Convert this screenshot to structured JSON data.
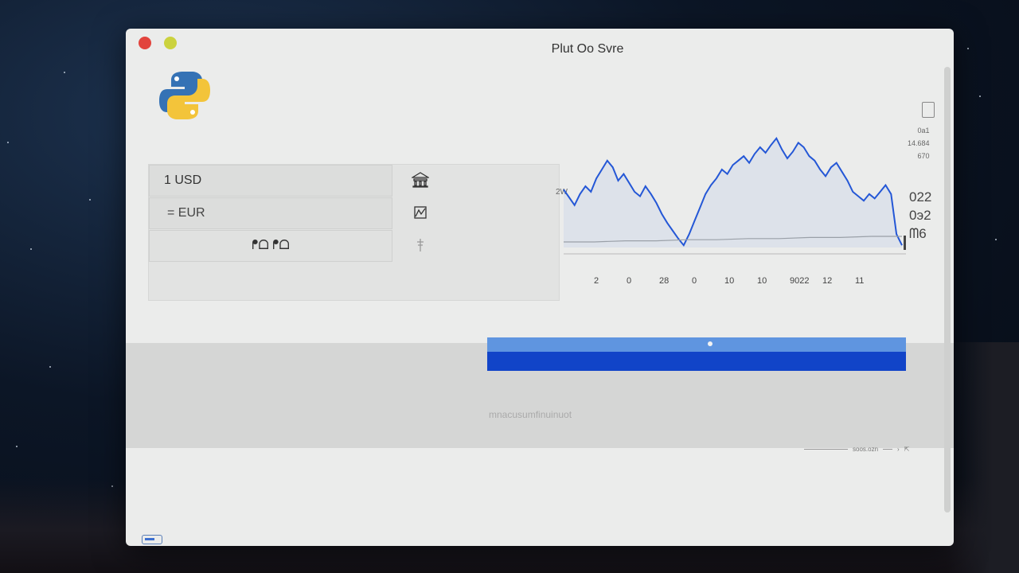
{
  "window": {
    "title": "Plut Oo Svre"
  },
  "converter": {
    "amount_label": "1 USD",
    "result_label": "= EUR",
    "action_label": "ᖰᗝ ᖰᗝ",
    "side_icons": [
      "bank-icon",
      "chart-icon",
      "pin-icon"
    ]
  },
  "chart": {
    "x_ticks": [
      "2",
      "0",
      "28",
      "0",
      "10",
      "10",
      "9022",
      "12",
      "11"
    ],
    "y_label": "2W",
    "right_values": [
      "022",
      "0э2",
      "ᗰ6"
    ],
    "info_lines": [
      "0a1",
      "14.684",
      "670"
    ]
  },
  "chart_data": {
    "type": "line",
    "series": [
      {
        "values": [
          0.52,
          0.45,
          0.38,
          0.48,
          0.55,
          0.5,
          0.62,
          0.7,
          0.78,
          0.72,
          0.6,
          0.66,
          0.58,
          0.5,
          0.46,
          0.55,
          0.48,
          0.4,
          0.3,
          0.22,
          0.15,
          0.08,
          0.02,
          0.12,
          0.24,
          0.36,
          0.48,
          0.56,
          0.62,
          0.7,
          0.66,
          0.74,
          0.78,
          0.82,
          0.76,
          0.84,
          0.9,
          0.85,
          0.92,
          0.98,
          0.88,
          0.8,
          0.86,
          0.94,
          0.9,
          0.82,
          0.78,
          0.7,
          0.64,
          0.72,
          0.76,
          0.68,
          0.6,
          0.5,
          0.46,
          0.42,
          0.48,
          0.44,
          0.5,
          0.56,
          0.48,
          0.12,
          0.02
        ]
      },
      {
        "values": [
          0.05,
          0.05,
          0.06,
          0.06,
          0.07,
          0.07,
          0.08,
          0.08,
          0.09,
          0.09,
          0.1,
          0.1
        ]
      }
    ]
  },
  "bottom": {
    "caption": "mnacusumfinuinuot",
    "footer_text": "soos.ozn"
  }
}
